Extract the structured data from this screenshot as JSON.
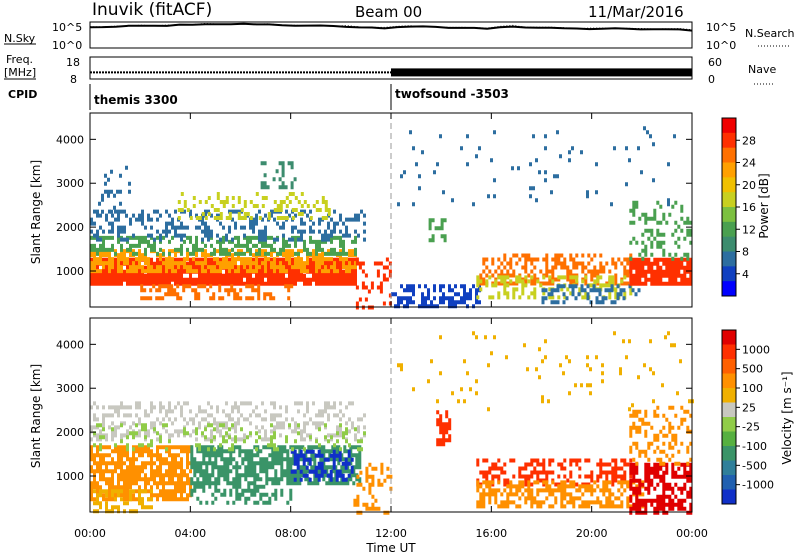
{
  "header": {
    "title_left": "Inuvik (fitACF)",
    "title_center": "Beam 00",
    "title_right": "11/Mar/2016"
  },
  "noise_panel": {
    "left_label": "N.Sky",
    "right_label": "N.Search",
    "left_ticks": [
      "10^5",
      "10^0"
    ],
    "right_ticks": [
      "10^5",
      "10^0"
    ],
    "sky_series": [
      4.2,
      4.3,
      4.3,
      4.4,
      4.5,
      4.5,
      4.6,
      4.7,
      4.7,
      4.8,
      4.8,
      4.9,
      4.9,
      4.9,
      4.8,
      4.7,
      4.6,
      4.5,
      4.5,
      4.4,
      4.4,
      4.2,
      4.1,
      4.0,
      4.3,
      4.4,
      4.3,
      4.2,
      4.1,
      4.1,
      4.0,
      4.0,
      4.3,
      4.4,
      4.2,
      4.1,
      4.0,
      4.0,
      3.9,
      3.9,
      3.9,
      3.9,
      3.8,
      3.8,
      3.8,
      3.7,
      3.7,
      3.6
    ],
    "search_series": [
      4.3,
      4.4,
      4.4,
      4.5,
      4.6,
      4.6,
      4.7,
      4.8,
      4.8,
      4.9,
      4.9,
      5.0,
      5.0,
      5.0,
      4.9,
      4.8,
      4.7,
      4.6,
      4.6,
      4.5,
      4.5,
      4.3,
      4.2,
      4.1,
      4.4,
      4.5,
      4.4,
      4.3,
      4.2,
      4.2,
      4.1,
      4.1,
      4.4,
      4.5,
      4.3,
      4.2,
      4.1,
      4.1,
      4.0,
      4.0,
      4.0,
      4.0,
      3.9,
      3.9,
      3.9,
      3.8,
      3.8,
      3.7
    ]
  },
  "freq_panel": {
    "left_label_1": "Freq.",
    "left_label_2": "[MHz]",
    "right_label": "Nave",
    "left_ticks": [
      "18",
      "8"
    ],
    "right_ticks": [
      "60",
      "0"
    ],
    "freq_mhz": 11,
    "nave_change_hour": 12
  },
  "cpid": {
    "label": "CPID",
    "segments": [
      {
        "start_hour": 0,
        "name": "themis 3300"
      },
      {
        "start_hour": 12,
        "name": "twofsound -3503"
      }
    ]
  },
  "colorbars": {
    "power": {
      "label": "Power [dB]",
      "ticks": [
        "28",
        "24",
        "20",
        "16",
        "12",
        "8",
        "4"
      ],
      "colors": [
        "#0000ff",
        "#1040c0",
        "#2d6ea0",
        "#3c8c6e",
        "#4aa050",
        "#7cc040",
        "#c8d020",
        "#f0c000",
        "#ffa000",
        "#ff7000",
        "#ff3000",
        "#f00000"
      ]
    },
    "velocity": {
      "label": "Velocity [m s⁻¹]",
      "ticks": [
        "1000",
        "500",
        "100",
        "25",
        "-25",
        "-100",
        "-500",
        "-1000"
      ],
      "colors": [
        "#1030c8",
        "#2060b0",
        "#2f7f9a",
        "#3a9468",
        "#56b040",
        "#90cc48",
        "#c8c8c0",
        "#f0b000",
        "#ff9000",
        "#ff6000",
        "#ff3000",
        "#e00000"
      ]
    }
  },
  "chart_data": [
    {
      "type": "heatmap",
      "name": "power",
      "xlabel": "",
      "ylabel": "Slant Range [km]",
      "xlim": [
        0,
        24
      ],
      "ylim": [
        180,
        4600
      ],
      "yticks": [
        "1000",
        "2000",
        "3000",
        "4000"
      ],
      "regions": [
        {
          "x0": 0.0,
          "x1": 10.6,
          "y0": 700,
          "y1": 1300,
          "color": "#ff3000",
          "density": 0.95
        },
        {
          "x0": 0.0,
          "x1": 10.6,
          "y0": 1000,
          "y1": 1500,
          "color": "#ffa000",
          "density": 0.6
        },
        {
          "x0": 0.0,
          "x1": 10.6,
          "y0": 1400,
          "y1": 1800,
          "color": "#4aa050",
          "density": 0.45
        },
        {
          "x0": 0.0,
          "x1": 11.0,
          "y0": 1700,
          "y1": 2400,
          "color": "#2d6ea0",
          "density": 0.35
        },
        {
          "x0": 0.2,
          "x1": 1.6,
          "y0": 2300,
          "y1": 3400,
          "color": "#2d6ea0",
          "density": 0.18
        },
        {
          "x0": 3.5,
          "x1": 9.5,
          "y0": 2200,
          "y1": 2800,
          "color": "#c8d020",
          "density": 0.3
        },
        {
          "x0": 6.8,
          "x1": 8.2,
          "y0": 2900,
          "y1": 3500,
          "color": "#3c8c6e",
          "density": 0.35
        },
        {
          "x0": 2.0,
          "x1": 8.0,
          "y0": 400,
          "y1": 700,
          "color": "#ff7000",
          "density": 0.35
        },
        {
          "x0": 10.6,
          "x1": 12.0,
          "y0": 200,
          "y1": 1400,
          "color": "#ff3000",
          "density": 0.25
        },
        {
          "x0": 12.0,
          "x1": 15.5,
          "y0": 200,
          "y1": 700,
          "color": "#1040c0",
          "density": 0.55
        },
        {
          "x0": 13.5,
          "x1": 14.2,
          "y0": 1700,
          "y1": 2200,
          "color": "#4aa050",
          "density": 0.4
        },
        {
          "x0": 15.4,
          "x1": 21.5,
          "y0": 700,
          "y1": 1400,
          "color": "#ff7000",
          "density": 0.45
        },
        {
          "x0": 15.4,
          "x1": 21.5,
          "y0": 400,
          "y1": 900,
          "color": "#c8d020",
          "density": 0.35
        },
        {
          "x0": 18.0,
          "x1": 22.0,
          "y0": 300,
          "y1": 700,
          "color": "#2d6ea0",
          "density": 0.35
        },
        {
          "x0": 21.5,
          "x1": 24.0,
          "y0": 700,
          "y1": 1300,
          "color": "#ff3000",
          "density": 0.9
        },
        {
          "x0": 21.5,
          "x1": 24.0,
          "y0": 1300,
          "y1": 2600,
          "color": "#4aa050",
          "density": 0.3
        },
        {
          "x0": 12.0,
          "x1": 24.0,
          "y0": 2500,
          "y1": 4300,
          "color": "#2d6ea0",
          "density": 0.03
        }
      ]
    },
    {
      "type": "heatmap",
      "name": "velocity",
      "xlabel": "Time UT",
      "ylabel": "Slant Range [km]",
      "xlim": [
        0,
        24
      ],
      "ylim": [
        180,
        4600
      ],
      "xticks": [
        "00:00",
        "04:00",
        "08:00",
        "12:00",
        "16:00",
        "20:00",
        "00:00"
      ],
      "yticks": [
        "1000",
        "2000",
        "3000",
        "4000"
      ],
      "regions": [
        {
          "x0": 0.0,
          "x1": 4.0,
          "y0": 500,
          "y1": 1700,
          "color": "#ff9000",
          "density": 0.75
        },
        {
          "x0": 4.0,
          "x1": 10.8,
          "y0": 800,
          "y1": 1700,
          "color": "#3a9468",
          "density": 0.75
        },
        {
          "x0": 8.0,
          "x1": 10.5,
          "y0": 900,
          "y1": 1600,
          "color": "#1030c8",
          "density": 0.5
        },
        {
          "x0": 4.0,
          "x1": 8.0,
          "y0": 400,
          "y1": 800,
          "color": "#3a9468",
          "density": 0.4
        },
        {
          "x0": 0.0,
          "x1": 11.0,
          "y0": 1800,
          "y1": 2700,
          "color": "#c8c8c0",
          "density": 0.35
        },
        {
          "x0": 0.0,
          "x1": 11.0,
          "y0": 1600,
          "y1": 2200,
          "color": "#90cc48",
          "density": 0.2
        },
        {
          "x0": 0.0,
          "x1": 2.5,
          "y0": 200,
          "y1": 700,
          "color": "#f0b000",
          "density": 0.4
        },
        {
          "x0": 13.8,
          "x1": 14.3,
          "y0": 1700,
          "y1": 2500,
          "color": "#ff3000",
          "density": 0.6
        },
        {
          "x0": 10.5,
          "x1": 12.0,
          "y0": 200,
          "y1": 1300,
          "color": "#ff9000",
          "density": 0.3
        },
        {
          "x0": 15.4,
          "x1": 21.5,
          "y0": 800,
          "y1": 1400,
          "color": "#ff3000",
          "density": 0.45
        },
        {
          "x0": 15.4,
          "x1": 22.0,
          "y0": 300,
          "y1": 900,
          "color": "#ff9000",
          "density": 0.55
        },
        {
          "x0": 21.5,
          "x1": 24.0,
          "y0": 200,
          "y1": 1300,
          "color": "#e00000",
          "density": 0.6
        },
        {
          "x0": 21.5,
          "x1": 24.0,
          "y0": 1300,
          "y1": 2600,
          "color": "#ff9000",
          "density": 0.3
        },
        {
          "x0": 12.0,
          "x1": 24.0,
          "y0": 2500,
          "y1": 4300,
          "color": "#f0b000",
          "density": 0.03
        }
      ]
    }
  ]
}
